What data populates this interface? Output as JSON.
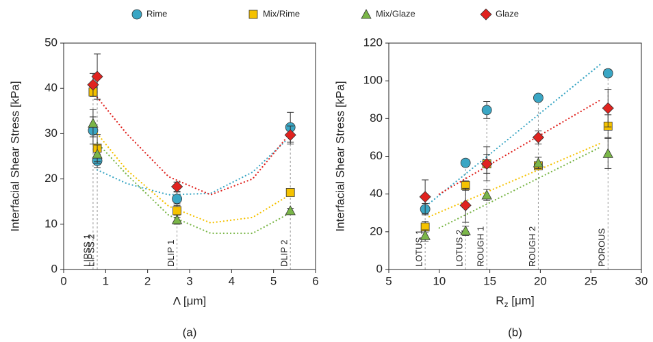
{
  "chart_data": [
    {
      "type": "scatter",
      "caption": "(a)",
      "legend": "top",
      "xlabel": "Λ [μm]",
      "ylabel": "Interfacial Shear Stress [kPa]",
      "xlim": [
        0,
        6
      ],
      "xticks": [
        0,
        1,
        2,
        3,
        4,
        5,
        6
      ],
      "ylim": [
        0,
        50
      ],
      "yticks": [
        0,
        10,
        20,
        30,
        40,
        50
      ],
      "x": [
        0.7,
        0.8,
        2.7,
        5.4
      ],
      "annotations": [
        "LIPSS 1",
        "LIPSS 2",
        "DLIP 1",
        "DLIP 2"
      ],
      "series": [
        {
          "name": "Rime",
          "color": "#3aa6c4",
          "marker": "circle",
          "values": [
            30.7,
            24,
            15.6,
            31.4
          ],
          "errors": [
            3,
            1.5,
            1.5,
            3.3
          ],
          "trend": {
            "x": [
              0.8,
              1.5,
              2.5,
              3.5,
              4.5,
              5.3
            ],
            "values": [
              22,
              19,
              16.5,
              16.8,
              21.5,
              28.5
            ]
          }
        },
        {
          "name": "Mix/Rime",
          "color": "#f5c200",
          "marker": "square",
          "values": [
            39.2,
            26.8,
            13,
            17
          ],
          "errors": [
            1,
            3,
            1.5,
            0.8
          ],
          "trend": {
            "x": [
              0.8,
              1.5,
              2.5,
              3.5,
              4.5,
              5.3
            ],
            "values": [
              30,
              22,
              14,
              10.3,
              11.5,
              16
            ]
          }
        },
        {
          "name": "Mix/Glaze",
          "color": "#7ab648",
          "marker": "triangle",
          "values": [
            32.3,
            25.5,
            11,
            13
          ],
          "errors": [
            3,
            2,
            1,
            0.5
          ],
          "trend": {
            "x": [
              0.8,
              1.5,
              2.5,
              3.5,
              4.5,
              5.3
            ],
            "values": [
              28,
              21,
              12,
              8,
              8,
              12
            ]
          }
        },
        {
          "name": "Glaze",
          "color": "#e0231f",
          "marker": "diamond",
          "values": [
            40.8,
            42.6,
            18.3,
            29.7
          ],
          "errors": [
            2.5,
            5,
            1,
            2
          ],
          "trend": {
            "x": [
              0.8,
              1.5,
              2.5,
              3.5,
              4.5,
              5.3
            ],
            "values": [
              38,
              30,
              20.5,
              16.5,
              20,
              29
            ]
          }
        }
      ]
    },
    {
      "type": "scatter",
      "caption": "(b)",
      "xlabel": {
        "text": "R",
        "subscript": "z",
        "unit": " [μm]"
      },
      "ylabel": "Interfacial Shear Stress [kPa]",
      "xlim": [
        5,
        30
      ],
      "xticks": [
        5,
        10,
        15,
        20,
        25,
        30
      ],
      "ylim": [
        0,
        120
      ],
      "yticks": [
        0,
        20,
        40,
        60,
        80,
        100,
        120
      ],
      "x": [
        8.6,
        12.6,
        14.7,
        19.8,
        26.7
      ],
      "annotations": [
        "LOTUS 1",
        "LOTUS 2",
        "ROUGH 1",
        "ROUGH 2",
        "POROUS"
      ],
      "series": [
        {
          "color": "#3aa6c4",
          "marker": "circle",
          "values": [
            32,
            56.5,
            84.5,
            91,
            104
          ],
          "errors": [
            3,
            1.5,
            4.5,
            1.5,
            2
          ],
          "trend": {
            "x": [
              9,
              26
            ],
            "values": [
              35,
              109
            ]
          }
        },
        {
          "color": "#f5c200",
          "marker": "square",
          "values": [
            22.5,
            44.5,
            56,
            55,
            76
          ],
          "errors": [
            3,
            2.5,
            5,
            2,
            6
          ],
          "trend": {
            "x": [
              9,
              26
            ],
            "values": [
              28,
              67
            ]
          }
        },
        {
          "color": "#7ab648",
          "marker": "triangle",
          "values": [
            18,
            20.5,
            39.5,
            56.5,
            61.5
          ],
          "errors": [
            3,
            2.5,
            3,
            3,
            8
          ],
          "trend": {
            "x": [
              10,
              26
            ],
            "values": [
              22,
              65
            ]
          }
        },
        {
          "color": "#e0231f",
          "marker": "diamond",
          "values": [
            38.5,
            34,
            56,
            70,
            85.5
          ],
          "errors": [
            9,
            9,
            9,
            3.5,
            10
          ],
          "trend": {
            "x": [
              10,
              26
            ],
            "values": [
              40,
              90
            ]
          }
        }
      ]
    }
  ]
}
